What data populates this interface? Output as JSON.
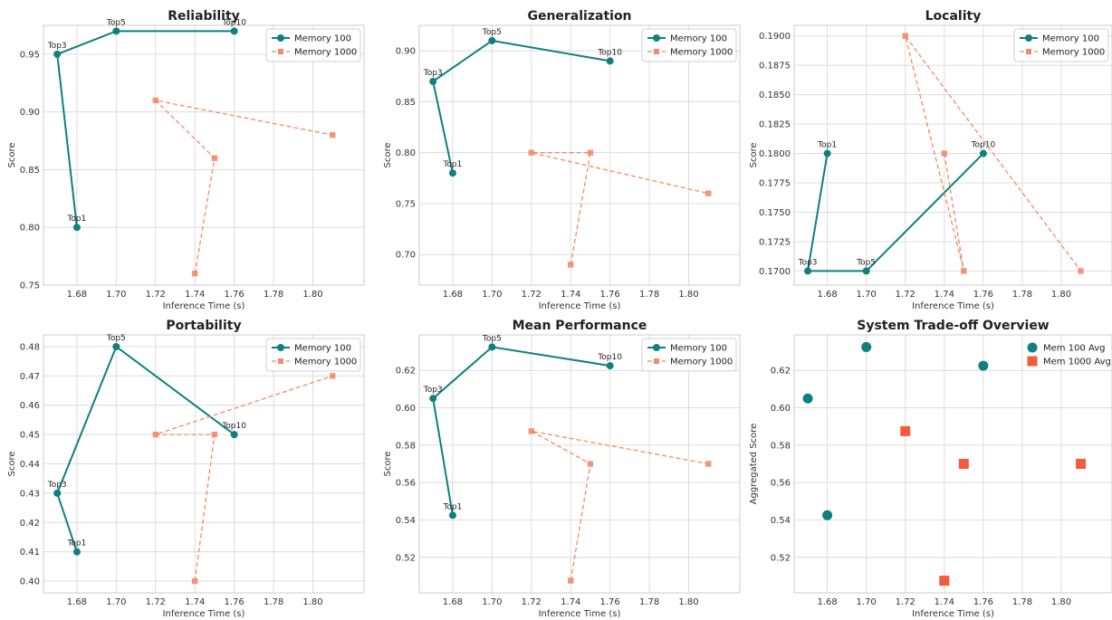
{
  "chart_data": [
    {
      "type": "line",
      "title": "Reliability",
      "xlabel": "Inference Time (s)",
      "ylabel": "Score",
      "xlim": [
        1.663,
        1.826
      ],
      "ylim": [
        0.75,
        0.975
      ],
      "xticks": [
        "1.68",
        "1.70",
        "1.72",
        "1.74",
        "1.76",
        "1.78",
        "1.80"
      ],
      "yticks": [
        "0.75",
        "0.80",
        "0.85",
        "0.90",
        "0.95"
      ],
      "legend_position": "top-right",
      "grid": true,
      "series": [
        {
          "name": "Memory 100",
          "color": "#0f7f7f",
          "style": "solid",
          "marker": "circle",
          "x": [
            1.68,
            1.67,
            1.7,
            1.76
          ],
          "y": [
            0.8,
            0.95,
            0.97,
            0.97
          ],
          "labels": [
            "Top1",
            "Top3",
            "Top5",
            "Top10"
          ]
        },
        {
          "name": "Memory 1000",
          "color": "#f4896b",
          "style": "dashed",
          "marker": "square",
          "x": [
            1.74,
            1.75,
            1.72,
            1.81
          ],
          "y": [
            0.76,
            0.86,
            0.91,
            0.88
          ]
        }
      ]
    },
    {
      "type": "line",
      "title": "Generalization",
      "xlabel": "Inference Time (s)",
      "ylabel": "Score",
      "xlim": [
        1.663,
        1.826
      ],
      "ylim": [
        0.67,
        0.925
      ],
      "xticks": [
        "1.68",
        "1.70",
        "1.72",
        "1.74",
        "1.76",
        "1.78",
        "1.80"
      ],
      "yticks": [
        "0.70",
        "0.75",
        "0.80",
        "0.85",
        "0.90"
      ],
      "legend_position": "top-right",
      "grid": true,
      "series": [
        {
          "name": "Memory 100",
          "color": "#0f7f7f",
          "style": "solid",
          "marker": "circle",
          "x": [
            1.68,
            1.67,
            1.7,
            1.76
          ],
          "y": [
            0.78,
            0.87,
            0.91,
            0.89
          ],
          "labels": [
            "Top1",
            "Top3",
            "Top5",
            "Top10"
          ]
        },
        {
          "name": "Memory 1000",
          "color": "#f4896b",
          "style": "dashed",
          "marker": "square",
          "x": [
            1.74,
            1.75,
            1.72,
            1.81
          ],
          "y": [
            0.69,
            0.8,
            0.8,
            0.76
          ]
        }
      ]
    },
    {
      "type": "line",
      "title": "Locality",
      "xlabel": "Inference Time (s)",
      "ylabel": "Score",
      "xlim": [
        1.663,
        1.826
      ],
      "ylim": [
        0.1688,
        0.1909
      ],
      "xticks": [
        "1.68",
        "1.70",
        "1.72",
        "1.74",
        "1.76",
        "1.78",
        "1.80"
      ],
      "yticks": [
        "0.1700",
        "0.1725",
        "0.1750",
        "0.1775",
        "0.1800",
        "0.1825",
        "0.1850",
        "0.1875",
        "0.1900"
      ],
      "legend_position": "top-right",
      "grid": true,
      "series": [
        {
          "name": "Memory 100",
          "color": "#0f7f7f",
          "style": "solid",
          "marker": "circle",
          "x": [
            1.68,
            1.67,
            1.7,
            1.76
          ],
          "y": [
            0.18,
            0.17,
            0.17,
            0.18
          ],
          "labels": [
            "Top1",
            "Top3",
            "Top5",
            "Top10"
          ]
        },
        {
          "name": "Memory 1000",
          "color": "#f4896b",
          "style": "dashed",
          "marker": "square",
          "x": [
            1.74,
            1.75,
            1.72,
            1.81
          ],
          "y": [
            0.18,
            0.17,
            0.19,
            0.17
          ]
        }
      ]
    },
    {
      "type": "line",
      "title": "Portability",
      "xlabel": "Inference Time (s)",
      "ylabel": "Score",
      "xlim": [
        1.663,
        1.826
      ],
      "ylim": [
        0.396,
        0.484
      ],
      "xticks": [
        "1.68",
        "1.70",
        "1.72",
        "1.74",
        "1.76",
        "1.78",
        "1.80"
      ],
      "yticks": [
        "0.40",
        "0.41",
        "0.42",
        "0.43",
        "0.44",
        "0.45",
        "0.46",
        "0.47",
        "0.48"
      ],
      "legend_position": "top-right",
      "grid": true,
      "series": [
        {
          "name": "Memory 100",
          "color": "#0f7f7f",
          "style": "solid",
          "marker": "circle",
          "x": [
            1.68,
            1.67,
            1.7,
            1.76
          ],
          "y": [
            0.41,
            0.43,
            0.48,
            0.45
          ],
          "labels": [
            "Top1",
            "Top3",
            "Top5",
            "Top10"
          ]
        },
        {
          "name": "Memory 1000",
          "color": "#f4896b",
          "style": "dashed",
          "marker": "square",
          "x": [
            1.74,
            1.75,
            1.72,
            1.81
          ],
          "y": [
            0.4,
            0.45,
            0.45,
            0.47
          ]
        }
      ]
    },
    {
      "type": "line",
      "title": "Mean Performance",
      "xlabel": "Inference Time (s)",
      "ylabel": "Score",
      "xlim": [
        1.663,
        1.826
      ],
      "ylim": [
        0.501,
        0.639
      ],
      "xticks": [
        "1.68",
        "1.70",
        "1.72",
        "1.74",
        "1.76",
        "1.78",
        "1.80"
      ],
      "yticks": [
        "0.52",
        "0.54",
        "0.56",
        "0.58",
        "0.60",
        "0.62"
      ],
      "legend_position": "top-right",
      "grid": true,
      "series": [
        {
          "name": "Memory 100",
          "color": "#0f7f7f",
          "style": "solid",
          "marker": "circle",
          "x": [
            1.68,
            1.67,
            1.7,
            1.76
          ],
          "y": [
            0.5425,
            0.605,
            0.6325,
            0.6225
          ],
          "labels": [
            "Top1",
            "Top3",
            "Top5",
            "Top10"
          ]
        },
        {
          "name": "Memory 1000",
          "color": "#f4896b",
          "style": "dashed",
          "marker": "square",
          "x": [
            1.74,
            1.75,
            1.72,
            1.81
          ],
          "y": [
            0.5075,
            0.57,
            0.5875,
            0.57
          ]
        }
      ]
    },
    {
      "type": "scatter",
      "title": "System Trade-off Overview",
      "xlabel": "Inference Time (s)",
      "ylabel": "Aggregated Score",
      "xlim": [
        1.663,
        1.826
      ],
      "ylim": [
        0.501,
        0.639
      ],
      "xticks": [
        "1.68",
        "1.70",
        "1.72",
        "1.74",
        "1.76",
        "1.78",
        "1.80"
      ],
      "yticks": [
        "0.52",
        "0.54",
        "0.56",
        "0.58",
        "0.60",
        "0.62"
      ],
      "legend_position": "top-right",
      "grid": true,
      "series": [
        {
          "name": "Mem 100 Avg",
          "color": "#0f7f7f",
          "marker": "circle",
          "x": [
            1.68,
            1.67,
            1.7,
            1.76
          ],
          "y": [
            0.5425,
            0.605,
            0.6325,
            0.6225
          ]
        },
        {
          "name": "Mem 1000 Avg",
          "color": "#f25c3c",
          "marker": "square",
          "x": [
            1.74,
            1.75,
            1.72,
            1.81
          ],
          "y": [
            0.5075,
            0.57,
            0.5875,
            0.57
          ]
        }
      ]
    }
  ]
}
